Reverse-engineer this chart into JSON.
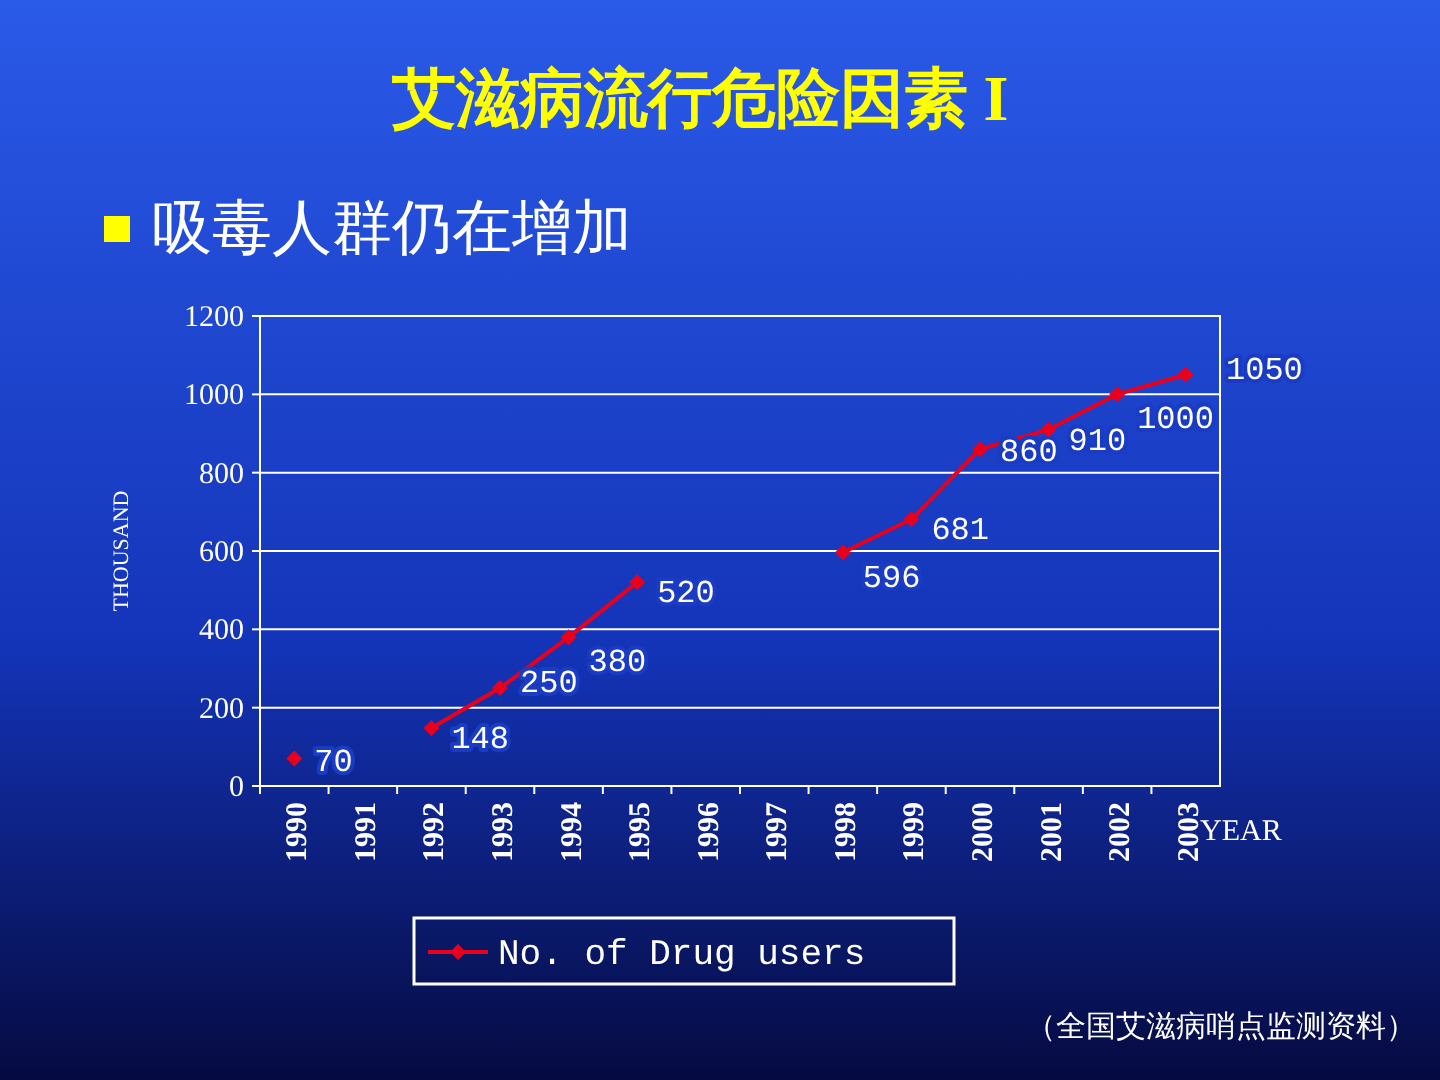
{
  "chart_data": {
    "type": "line",
    "title": "艾滋病流行危险因素 I",
    "subtitle": "吸毒人群仍在增加",
    "xlabel": "YEAR",
    "ylabel": "THOUSAND",
    "categories": [
      "1990",
      "1991",
      "1992",
      "1993",
      "1994",
      "1995",
      "1996",
      "1997",
      "1998",
      "1999",
      "2000",
      "2001",
      "2002",
      "2003"
    ],
    "series": [
      {
        "name": "No. of Drug users",
        "color": "#e8001c",
        "values": [
          70,
          null,
          148,
          250,
          380,
          520,
          null,
          null,
          596,
          681,
          860,
          910,
          1000,
          1050
        ]
      }
    ],
    "ylim": [
      0,
      1200
    ],
    "yticks": [
      0,
      200,
      400,
      600,
      800,
      1000,
      1200
    ],
    "grid": "y",
    "legend": "bottom",
    "marker": "diamond",
    "line_style": "solid",
    "data_labels": true,
    "annotations": [
      "（全国艾滋病哨点监测资料）"
    ]
  }
}
